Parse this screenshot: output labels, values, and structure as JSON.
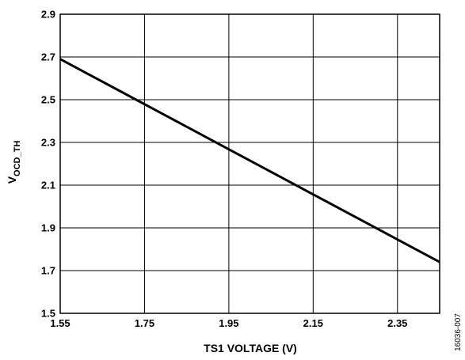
{
  "chart_data": {
    "type": "line",
    "title": "",
    "xlabel": "TS1 VOLTAGE (V)",
    "ylabel": {
      "main": "V",
      "subscript": "OCD_TH"
    },
    "xlim": [
      1.55,
      2.45
    ],
    "ylim": [
      1.5,
      2.9
    ],
    "x_ticks": [
      1.55,
      1.75,
      1.95,
      2.15,
      2.35
    ],
    "x_tick_labels": [
      "1.55",
      "1.75",
      "1.95",
      "2.15",
      "2.35"
    ],
    "y_ticks": [
      1.5,
      1.7,
      1.9,
      2.1,
      2.3,
      2.5,
      2.7,
      2.9
    ],
    "y_tick_labels": [
      "1.5",
      "1.7",
      "1.9",
      "2.1",
      "2.3",
      "2.5",
      "2.7",
      "2.9"
    ],
    "grid": true,
    "series": [
      {
        "x": [
          1.55,
          2.45
        ],
        "y": [
          2.69,
          1.74
        ],
        "color": "#000000"
      }
    ],
    "figure_code": "16036-007"
  }
}
